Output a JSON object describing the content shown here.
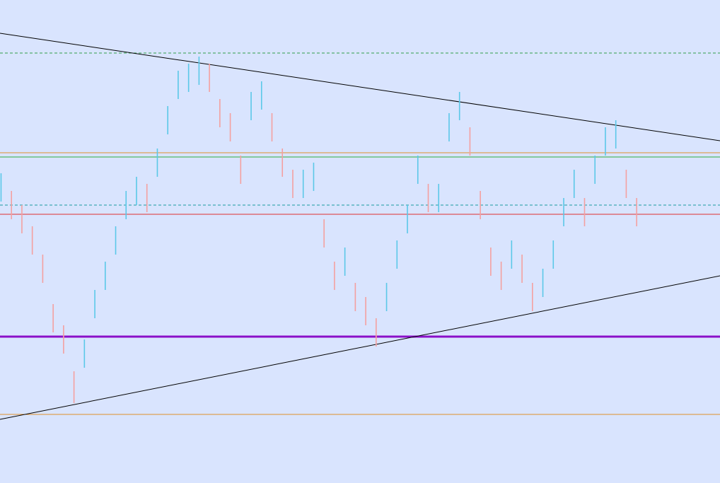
{
  "chart_data": {
    "type": "ohlc",
    "xlim": [
      -0.1,
      69
    ],
    "ylim": [
      0,
      683
    ],
    "up_color": "#5bc8e8",
    "down_color": "#f4a0a0",
    "high": [
      438,
      413,
      393,
      363,
      323,
      253,
      223,
      158,
      203,
      273,
      313,
      363,
      413,
      433,
      423,
      473,
      533,
      583,
      593,
      603,
      593,
      543,
      523,
      463,
      553,
      568,
      523,
      473,
      443,
      443,
      453,
      373,
      313,
      333,
      283,
      263,
      233,
      283,
      343,
      393,
      463,
      423,
      423,
      523,
      553,
      503,
      413,
      333,
      313,
      343,
      323,
      283,
      303,
      343,
      403,
      443,
      403,
      463,
      503,
      513,
      443,
      403
    ],
    "low": [
      398,
      373,
      353,
      323,
      283,
      213,
      183,
      113,
      163,
      233,
      273,
      323,
      373,
      393,
      383,
      433,
      493,
      543,
      553,
      563,
      553,
      503,
      483,
      423,
      513,
      528,
      483,
      433,
      403,
      403,
      413,
      333,
      273,
      293,
      243,
      223,
      193,
      243,
      303,
      353,
      423,
      383,
      383,
      483,
      513,
      463,
      373,
      293,
      273,
      303,
      283,
      243,
      263,
      303,
      363,
      403,
      363,
      423,
      463,
      473,
      403,
      363
    ],
    "levels": [
      {
        "value": 608,
        "color": "#2e9e4a",
        "dashed": true,
        "width": 1
      },
      {
        "value": 467,
        "color": "#e0902a",
        "dashed": false,
        "width": 1
      },
      {
        "value": 461,
        "color": "#2eae3a",
        "dashed": false,
        "width": 1
      },
      {
        "value": 393,
        "color": "#1a9aa0",
        "dashed": true,
        "width": 1
      },
      {
        "value": 380,
        "color": "#e03030",
        "dashed": false,
        "width": 1
      },
      {
        "value": 207,
        "color": "#8a10c8",
        "dashed": false,
        "width": 3
      },
      {
        "value": 97,
        "color": "#e0902a",
        "dashed": false,
        "width": 1
      }
    ],
    "trendlines": [
      {
        "x": [
          -0.1,
          69
        ],
        "y": [
          636,
          484
        ],
        "color": "#000000"
      },
      {
        "x": [
          -0.1,
          69
        ],
        "y": [
          90,
          293
        ],
        "color": "#000000"
      }
    ]
  }
}
